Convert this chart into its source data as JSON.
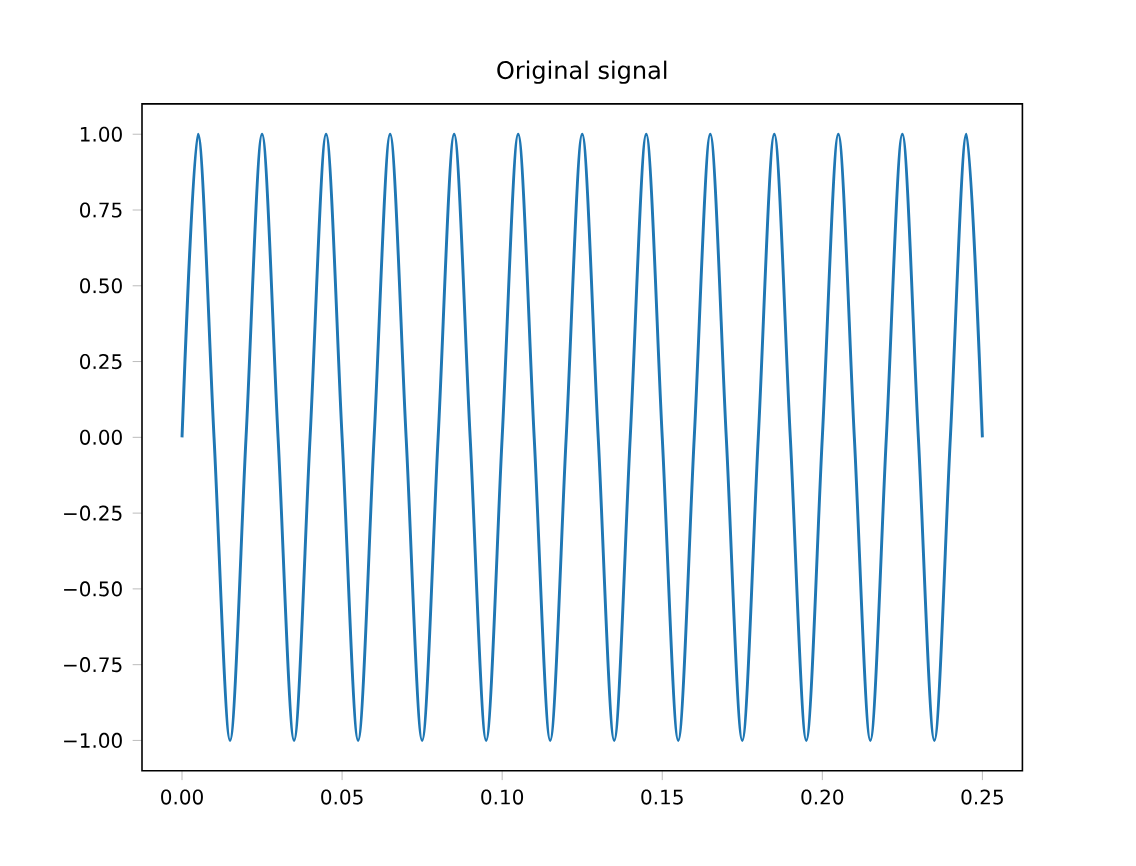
{
  "chart_data": {
    "type": "line",
    "title": "Original signal",
    "x": [
      0,
      0.005,
      0.01,
      0.015,
      0.02,
      0.025,
      0.03,
      0.035,
      0.04,
      0.045,
      0.05,
      0.055,
      0.06,
      0.065,
      0.07,
      0.075,
      0.08,
      0.085,
      0.09,
      0.095,
      0.1,
      0.105,
      0.11,
      0.115,
      0.12,
      0.125,
      0.13,
      0.135,
      0.14,
      0.145,
      0.15,
      0.155,
      0.16,
      0.165,
      0.17,
      0.175,
      0.18,
      0.185,
      0.19,
      0.195,
      0.2,
      0.205,
      0.21,
      0.215,
      0.22,
      0.225,
      0.23,
      0.235,
      0.24,
      0.245,
      0.25
    ],
    "series": [
      {
        "color": "#1f77b4",
        "values": [
          0,
          1,
          0,
          -1,
          0,
          1,
          0,
          -1,
          0,
          1,
          0,
          -1,
          0,
          1,
          0,
          -1,
          0,
          1,
          0,
          -1,
          0,
          1,
          0,
          -1,
          0,
          1,
          0,
          -1,
          0,
          1,
          0,
          -1,
          0,
          1,
          0,
          -1,
          0,
          1,
          0,
          -1,
          0,
          1,
          0,
          -1,
          0,
          1,
          0,
          -1,
          0,
          1,
          0
        ]
      }
    ],
    "xlim": [
      -0.0125,
      0.2625
    ],
    "ylim": [
      -1.1,
      1.1
    ],
    "xticks": [
      {
        "value": 0,
        "label": "0.00"
      },
      {
        "value": 0.05,
        "label": "0.05"
      },
      {
        "value": 0.1,
        "label": "0.10"
      },
      {
        "value": 0.15,
        "label": "0.15"
      },
      {
        "value": 0.2,
        "label": "0.20"
      },
      {
        "value": 0.25,
        "label": "0.25"
      }
    ],
    "yticks": [
      {
        "value": -1,
        "label": "−1.00"
      },
      {
        "value": -0.75,
        "label": "−0.75"
      },
      {
        "value": -0.5,
        "label": "−0.50"
      },
      {
        "value": -0.25,
        "label": "−0.25"
      },
      {
        "value": 0,
        "label": "0.00"
      },
      {
        "value": 0.25,
        "label": "0.25"
      },
      {
        "value": 0.5,
        "label": "0.50"
      },
      {
        "value": 0.75,
        "label": "0.75"
      },
      {
        "value": 1,
        "label": "1.00"
      }
    ]
  }
}
